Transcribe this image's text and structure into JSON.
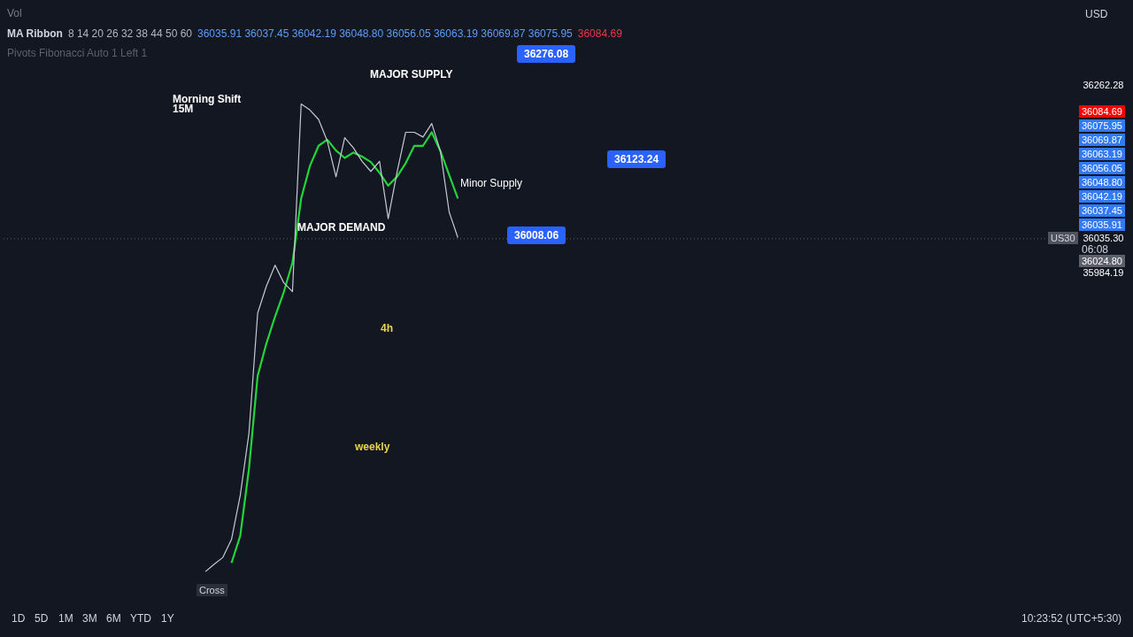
{
  "chart_data": {
    "type": "line",
    "categories": [
      null,
      null,
      null,
      null,
      null,
      null,
      null,
      null,
      null,
      null,
      null,
      null,
      null,
      null,
      null,
      null,
      null,
      null,
      null,
      null,
      null,
      null,
      null,
      null,
      null,
      null,
      null,
      null,
      null,
      null,
      null,
      null,
      null,
      null,
      null,
      null,
      null,
      null,
      null,
      null,
      null,
      null,
      null,
      null,
      null,
      null,
      null,
      null,
      null,
      null,
      null,
      null,
      null,
      null,
      null,
      null,
      null,
      null,
      null,
      null,
      null,
      null,
      null,
      null,
      null,
      null,
      null,
      null,
      null,
      null,
      null,
      null,
      null,
      null,
      null,
      null,
      null,
      null,
      null,
      null,
      null,
      null,
      null,
      null,
      null,
      null,
      null,
      null,
      null,
      null,
      null,
      null,
      null,
      null,
      null,
      null,
      null,
      null,
      null,
      null,
      null,
      null,
      null,
      null,
      null,
      null,
      null,
      null,
      null,
      null,
      null,
      null,
      null,
      null,
      null,
      null,
      null,
      null,
      null,
      null
    ],
    "ylim": [
      35533,
      36389
    ],
    "yticks": [
      {
        "value": 36262.28,
        "label": "36262.28"
      },
      {
        "value": 36035.3,
        "label": "36035.30"
      },
      {
        "value": 35984.19,
        "label": "35984.19"
      }
    ],
    "tick_labels": "y",
    "marker": "none",
    "line_style": "solid",
    "series": [
      {
        "color": "#c8cad2",
        "values": [
          null,
          null,
          null,
          null,
          null,
          null,
          null,
          null,
          null,
          null,
          null,
          null,
          null,
          null,
          null,
          null,
          null,
          null,
          null,
          null,
          null,
          null,
          null,
          35542,
          35553,
          35563,
          35590,
          35655,
          35747,
          35925,
          35965,
          35996,
          35970,
          35957,
          36235,
          36226,
          36212,
          36180,
          36127,
          36185,
          36170,
          36150,
          36135,
          36150,
          36065,
          36133,
          36193,
          36193,
          36186,
          36206,
          36165,
          36075,
          36037,
          null,
          null,
          null,
          null,
          null,
          null,
          null,
          null,
          null,
          null,
          null,
          null,
          null,
          null,
          null,
          null,
          null,
          null,
          null,
          null,
          null,
          null,
          null,
          null,
          null,
          null,
          null,
          null,
          null,
          null,
          null,
          null,
          null,
          null,
          null,
          null,
          null,
          null,
          null,
          null,
          null,
          null,
          null,
          null,
          null,
          null,
          null,
          null,
          null,
          null,
          null,
          null,
          null,
          null,
          null,
          null,
          null,
          null,
          null,
          null,
          null,
          null,
          null,
          null,
          null,
          null,
          null
        ]
      },
      {
        "color": "#22d63a",
        "values": [
          null,
          null,
          null,
          null,
          null,
          null,
          null,
          null,
          null,
          null,
          null,
          null,
          null,
          null,
          null,
          null,
          null,
          null,
          null,
          null,
          null,
          null,
          null,
          null,
          null,
          null,
          35555,
          35595,
          35694,
          35832,
          35880,
          35920,
          35956,
          36000,
          36095,
          36143,
          36173,
          36182,
          36166,
          36155,
          36163,
          36157,
          36149,
          36133,
          36114,
          36127,
          36147,
          36173,
          36173,
          36193,
          36165,
          36130,
          36095,
          null,
          null,
          null,
          null,
          null,
          null,
          null,
          null,
          null,
          null,
          null,
          null,
          null,
          null,
          null,
          null,
          null,
          null,
          null,
          null,
          null,
          null,
          null,
          null,
          null,
          null,
          null,
          null,
          null,
          null,
          null,
          null,
          null,
          null,
          null,
          null,
          null,
          null,
          null,
          null,
          null,
          null,
          null,
          null,
          null,
          null,
          null,
          null,
          null,
          null,
          null,
          null,
          null,
          null,
          null,
          null,
          null,
          null,
          null,
          null,
          null,
          null,
          null,
          null,
          null,
          null,
          null
        ]
      }
    ],
    "ref_lines": [
      {
        "axis": "y",
        "value": 36035.3,
        "color": "#5d606b",
        "line_style": "dotted"
      }
    ],
    "annotations": [
      "MAJOR SUPPLY",
      "MAJOR DEMAND",
      "Minor Supply",
      "4h",
      "weekly",
      "36276.08",
      "36123.24",
      "36008.06",
      "Vol",
      "MA Ribbon",
      "8 14 20 26 32 38 44 50 60",
      "36035.91 36037.45 36042.19 36048.80 36056.05 36063.19 36069.87 36075.95",
      "36084.69",
      "Pivots Fibonacci Auto 1 Left 1",
      "Morning Shift",
      "15M",
      "USD",
      "36084.69",
      "36075.95",
      "36069.87",
      "36063.19",
      "36056.05",
      "36048.80",
      "36042.19",
      "36037.45",
      "36035.91",
      "36024.80",
      "US30",
      "06:08",
      "1D",
      "5D",
      "1M",
      "3M",
      "6M",
      "YTD",
      "1Y",
      "Cross",
      "10:23:52 (UTC+5:30)"
    ]
  }
}
